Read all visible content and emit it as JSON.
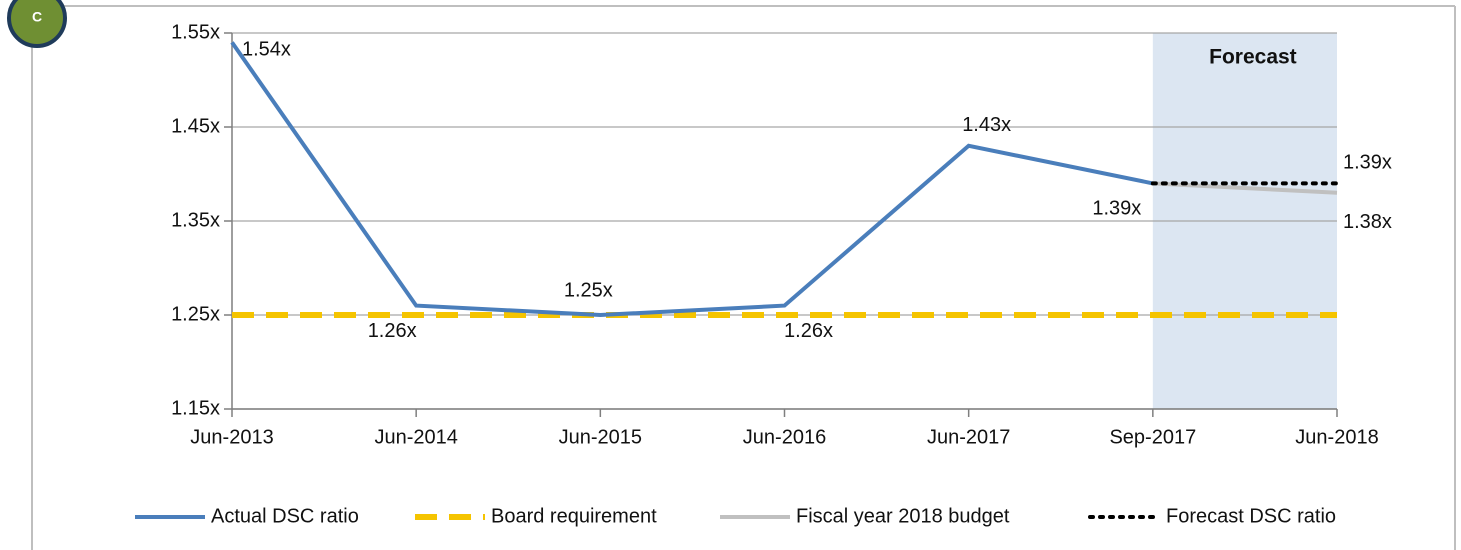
{
  "badge": "C",
  "chart_data": {
    "type": "line",
    "categories": [
      "Jun-2013",
      "Jun-2014",
      "Jun-2015",
      "Jun-2016",
      "Jun-2017",
      "Sep-2017",
      "Jun-2018"
    ],
    "ylim": [
      1.15,
      1.55
    ],
    "yticks": [
      {
        "value": 1.15,
        "label": "1.15x"
      },
      {
        "value": 1.25,
        "label": "1.25x"
      },
      {
        "value": 1.35,
        "label": "1.35x"
      },
      {
        "value": 1.45,
        "label": "1.45x"
      },
      {
        "value": 1.55,
        "label": "1.55x"
      }
    ],
    "grid": true,
    "legend": "bottom",
    "shaded_region": {
      "label": "Forecast",
      "start": "Sep-2017",
      "end": "Jun-2018",
      "color": "#dce6f2"
    },
    "series": [
      {
        "name": "Actual DSC ratio",
        "color": "#4a7ebb",
        "style": "solid",
        "values": [
          1.54,
          1.26,
          1.25,
          1.26,
          1.43,
          1.39,
          null
        ],
        "value_labels": [
          "1.54x",
          "1.26x",
          "1.25x",
          "1.26x",
          "1.43x",
          "1.39x",
          null
        ]
      },
      {
        "name": "Board requirement",
        "color": "#f5c400",
        "style": "dashed",
        "values": [
          1.25,
          1.25,
          1.25,
          1.25,
          1.25,
          1.25,
          1.25
        ]
      },
      {
        "name": "Fiscal year 2018 budget",
        "color": "#c0c0c0",
        "style": "solid",
        "values": [
          null,
          null,
          null,
          null,
          null,
          1.39,
          1.38
        ],
        "value_labels": [
          null,
          null,
          null,
          null,
          null,
          null,
          "1.38x"
        ]
      },
      {
        "name": "Forecast DSC ratio",
        "color": "#000000",
        "style": "dotted",
        "values": [
          null,
          null,
          null,
          null,
          null,
          1.39,
          1.39
        ],
        "value_labels": [
          null,
          null,
          null,
          null,
          null,
          null,
          "1.39x"
        ]
      }
    ]
  }
}
